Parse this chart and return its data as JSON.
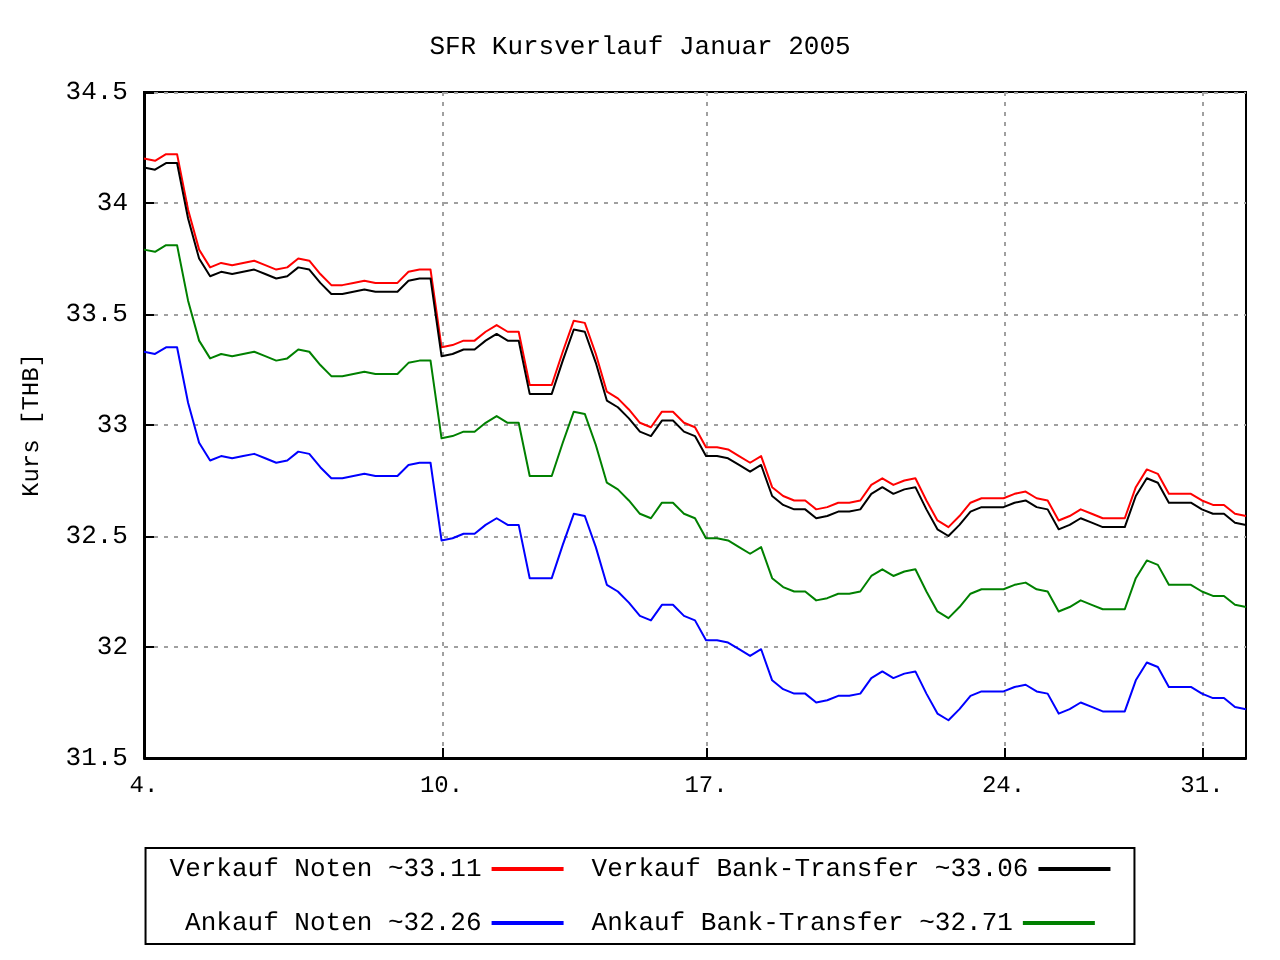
{
  "chart_data": {
    "type": "line",
    "title": "SFR Kursverlauf Januar 2005",
    "ylabel": "Kurs [THB]",
    "categories": [
      "4.",
      null,
      null,
      null,
      null,
      null,
      null,
      null,
      null,
      null,
      null,
      null,
      null,
      null,
      null,
      null,
      null,
      null,
      null,
      null,
      null,
      null,
      null,
      null,
      null,
      null,
      null,
      "10.",
      null,
      null,
      null,
      null,
      null,
      null,
      null,
      null,
      null,
      null,
      null,
      null,
      null,
      null,
      null,
      null,
      null,
      null,
      null,
      null,
      null,
      null,
      null,
      "17.",
      null,
      null,
      null,
      null,
      null,
      null,
      null,
      null,
      null,
      null,
      null,
      null,
      null,
      null,
      null,
      null,
      null,
      null,
      null,
      null,
      null,
      null,
      null,
      null,
      null,
      null,
      "24.",
      null,
      null,
      null,
      null,
      null,
      null,
      null,
      null,
      null,
      null,
      null,
      null,
      null,
      null,
      null,
      null,
      null,
      "31.",
      null,
      null,
      null,
      null
    ],
    "series": [
      {
        "name": "Verkauf Noten ~33.11",
        "color": "#ff0000",
        "values": [
          34.2,
          34.19,
          34.22,
          34.22,
          33.97,
          33.79,
          33.71,
          33.73,
          33.72,
          33.73,
          33.74,
          33.72,
          33.7,
          33.71,
          33.75,
          33.74,
          33.68,
          33.63,
          33.63,
          33.64,
          33.65,
          33.64,
          33.64,
          33.64,
          33.69,
          33.7,
          33.7,
          33.35,
          33.36,
          33.38,
          33.38,
          33.42,
          33.45,
          33.42,
          33.42,
          33.18,
          33.18,
          33.18,
          33.33,
          33.47,
          33.46,
          33.32,
          33.15,
          33.12,
          33.07,
          33.01,
          32.99,
          33.06,
          33.06,
          33.01,
          32.99,
          32.9,
          32.9,
          32.89,
          32.86,
          32.83,
          32.86,
          32.72,
          32.68,
          32.66,
          32.66,
          32.62,
          32.63,
          32.65,
          32.65,
          32.66,
          32.73,
          32.76,
          32.73,
          32.75,
          32.76,
          32.66,
          32.57,
          32.54,
          32.59,
          32.65,
          32.67,
          32.67,
          32.67,
          32.69,
          32.7,
          32.67,
          32.66,
          32.57,
          32.59,
          32.62,
          32.6,
          32.58,
          32.58,
          32.58,
          32.72,
          32.8,
          32.78,
          32.69,
          32.69,
          32.69,
          32.66,
          32.64,
          32.64,
          32.6,
          32.59
        ]
      },
      {
        "name": "Verkauf Bank-Transfer ~33.06",
        "color": "#000000",
        "values": [
          34.16,
          34.15,
          34.18,
          34.18,
          33.93,
          33.75,
          33.67,
          33.69,
          33.68,
          33.69,
          33.7,
          33.68,
          33.66,
          33.67,
          33.71,
          33.7,
          33.64,
          33.59,
          33.59,
          33.6,
          33.61,
          33.6,
          33.6,
          33.6,
          33.65,
          33.66,
          33.66,
          33.31,
          33.32,
          33.34,
          33.34,
          33.38,
          33.41,
          33.38,
          33.38,
          33.14,
          33.14,
          33.14,
          33.29,
          33.43,
          33.42,
          33.28,
          33.11,
          33.08,
          33.03,
          32.97,
          32.95,
          33.02,
          33.02,
          32.97,
          32.95,
          32.86,
          32.86,
          32.85,
          32.82,
          32.79,
          32.82,
          32.68,
          32.64,
          32.62,
          32.62,
          32.58,
          32.59,
          32.61,
          32.61,
          32.62,
          32.69,
          32.72,
          32.69,
          32.71,
          32.72,
          32.62,
          32.53,
          32.5,
          32.55,
          32.61,
          32.63,
          32.63,
          32.63,
          32.65,
          32.66,
          32.63,
          32.62,
          32.53,
          32.55,
          32.58,
          32.56,
          32.54,
          32.54,
          32.54,
          32.68,
          32.76,
          32.74,
          32.65,
          32.65,
          32.65,
          32.62,
          32.6,
          32.6,
          32.56,
          32.55
        ]
      },
      {
        "name": "Ankauf Noten ~32.26",
        "color": "#0000ff",
        "values": [
          33.33,
          33.32,
          33.35,
          33.35,
          33.1,
          32.92,
          32.84,
          32.86,
          32.85,
          32.86,
          32.87,
          32.85,
          32.83,
          32.84,
          32.88,
          32.87,
          32.81,
          32.76,
          32.76,
          32.77,
          32.78,
          32.77,
          32.77,
          32.77,
          32.82,
          32.83,
          32.83,
          32.48,
          32.49,
          32.51,
          32.51,
          32.55,
          32.58,
          32.55,
          32.55,
          32.31,
          32.31,
          32.31,
          32.46,
          32.6,
          32.59,
          32.45,
          32.28,
          32.25,
          32.2,
          32.14,
          32.12,
          32.19,
          32.19,
          32.14,
          32.12,
          32.03,
          32.03,
          32.02,
          31.99,
          31.96,
          31.99,
          31.85,
          31.81,
          31.79,
          31.79,
          31.75,
          31.76,
          31.78,
          31.78,
          31.79,
          31.86,
          31.89,
          31.86,
          31.88,
          31.89,
          31.79,
          31.7,
          31.67,
          31.72,
          31.78,
          31.8,
          31.8,
          31.8,
          31.82,
          31.83,
          31.8,
          31.79,
          31.7,
          31.72,
          31.75,
          31.73,
          31.71,
          31.71,
          31.71,
          31.85,
          31.93,
          31.91,
          31.82,
          31.82,
          31.82,
          31.79,
          31.77,
          31.77,
          31.73,
          31.72
        ]
      },
      {
        "name": "Ankauf Bank-Transfer ~32.71",
        "color": "#008000",
        "values": [
          33.79,
          33.78,
          33.81,
          33.81,
          33.56,
          33.38,
          33.3,
          33.32,
          33.31,
          33.32,
          33.33,
          33.31,
          33.29,
          33.3,
          33.34,
          33.33,
          33.27,
          33.22,
          33.22,
          33.23,
          33.24,
          33.23,
          33.23,
          33.23,
          33.28,
          33.29,
          33.29,
          32.94,
          32.95,
          32.97,
          32.97,
          33.01,
          33.04,
          33.01,
          33.01,
          32.77,
          32.77,
          32.77,
          32.92,
          33.06,
          33.05,
          32.91,
          32.74,
          32.71,
          32.66,
          32.6,
          32.58,
          32.65,
          32.65,
          32.6,
          32.58,
          32.49,
          32.49,
          32.48,
          32.45,
          32.42,
          32.45,
          32.31,
          32.27,
          32.25,
          32.25,
          32.21,
          32.22,
          32.24,
          32.24,
          32.25,
          32.32,
          32.35,
          32.32,
          32.34,
          32.35,
          32.25,
          32.16,
          32.13,
          32.18,
          32.24,
          32.26,
          32.26,
          32.26,
          32.28,
          32.29,
          32.26,
          32.25,
          32.16,
          32.18,
          32.21,
          32.19,
          32.17,
          32.17,
          32.17,
          32.31,
          32.39,
          32.37,
          32.28,
          32.28,
          32.28,
          32.25,
          32.23,
          32.23,
          32.19,
          32.18
        ]
      }
    ],
    "ylim": [
      31.5,
      34.5
    ],
    "yticks": [
      31.5,
      32,
      32.5,
      33,
      33.5,
      34,
      34.5
    ],
    "grid": true,
    "legend": "bottom",
    "marker": "none",
    "line_style": "solid"
  }
}
